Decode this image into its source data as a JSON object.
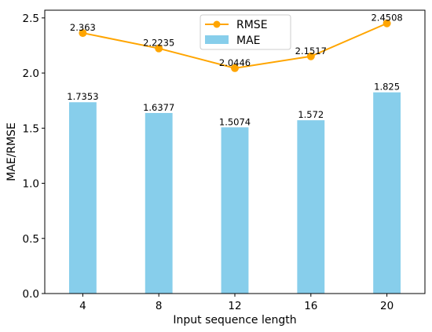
{
  "chart_data": {
    "type": "bar",
    "categories": [
      "4",
      "8",
      "12",
      "16",
      "20"
    ],
    "xlabel": "Input sequence length",
    "ylabel": "MAE/RMSE",
    "ylim": [
      0,
      2.57
    ],
    "yticks": [
      "0.0",
      "0.5",
      "1.0",
      "1.5",
      "2.0",
      "2.5"
    ],
    "legend_position": "top-center",
    "grid": false,
    "series": [
      {
        "name": "RMSE",
        "kind": "line",
        "color": "#FFA500",
        "values": [
          2.363,
          2.2235,
          2.0446,
          2.1517,
          2.4508
        ],
        "labels": [
          "2.363",
          "2.2235",
          "2.0446",
          "2.1517",
          "2.4508"
        ]
      },
      {
        "name": "MAE",
        "kind": "bar",
        "color": "#87CEEB",
        "values": [
          1.7353,
          1.6377,
          1.5074,
          1.572,
          1.825
        ],
        "labels": [
          "1.7353",
          "1.6377",
          "1.5074",
          "1.572",
          "1.825"
        ]
      }
    ]
  }
}
